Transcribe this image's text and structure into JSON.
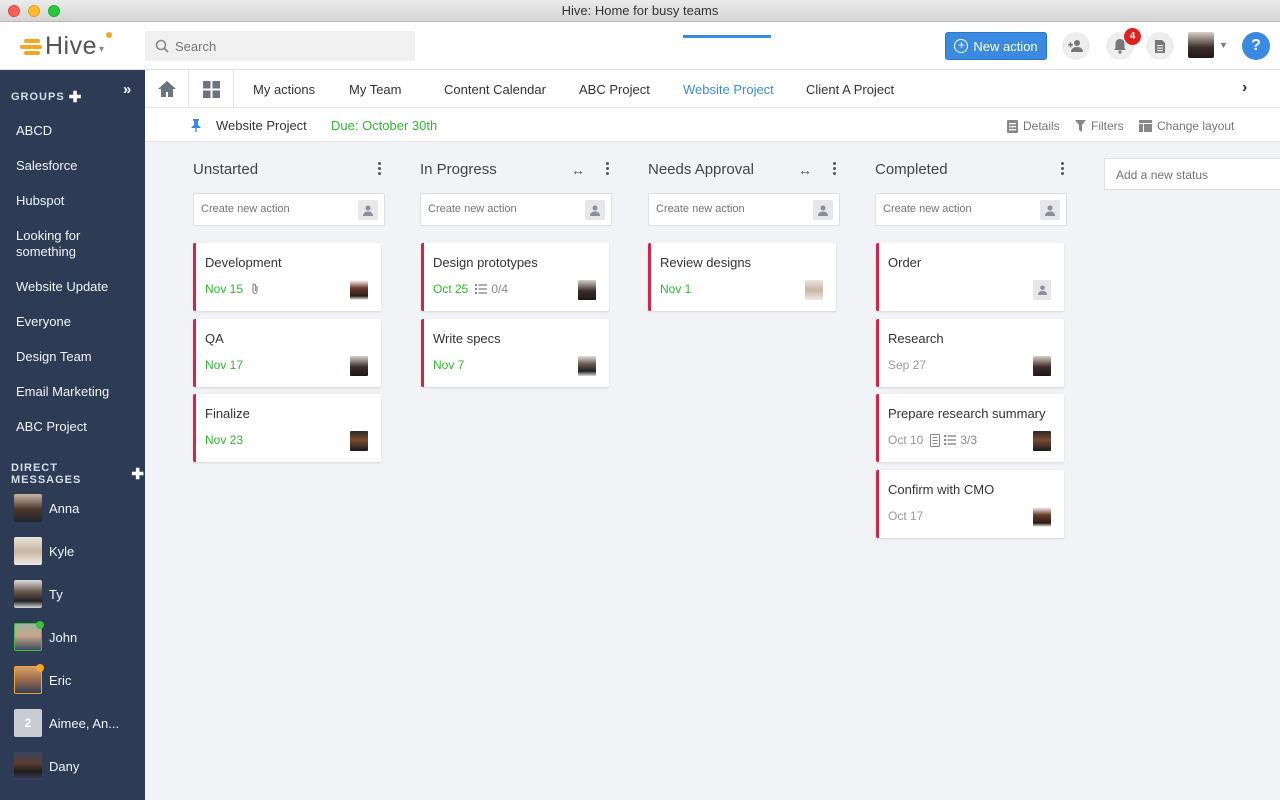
{
  "window": {
    "title": "Hive: Home for busy teams"
  },
  "brand": {
    "name": "Hive",
    "accent": "#3b8ae2",
    "logo_color": "#f5a623"
  },
  "search": {
    "placeholder": "Search"
  },
  "header": {
    "new_action_label": "New action",
    "notification_count": "4",
    "help_label": "?"
  },
  "sidebar": {
    "groups_heading": "GROUPS",
    "groups": [
      "ABCD",
      "Salesforce",
      "Hubspot",
      "Looking for something",
      "Website Update",
      "Everyone",
      "Design Team",
      "Email Marketing",
      "ABC Project"
    ],
    "dm_heading": "DIRECT MESSAGES",
    "dms": [
      {
        "name": "Anna",
        "status": ""
      },
      {
        "name": "Kyle",
        "status": ""
      },
      {
        "name": "Ty",
        "status": ""
      },
      {
        "name": "John",
        "status": "online"
      },
      {
        "name": "Eric",
        "status": "away"
      },
      {
        "name": "Aimee, An...",
        "status": "",
        "group_count": "2"
      },
      {
        "name": "Dany",
        "status": ""
      }
    ]
  },
  "tabs": {
    "items": [
      "My actions",
      "My Team",
      "Content Calendar",
      "ABC Project",
      "Website Project",
      "Client A Project"
    ],
    "active": "Website Project"
  },
  "project": {
    "name": "Website Project",
    "due": "Due: October 30th",
    "actions": {
      "details": "Details",
      "filters": "Filters",
      "change_layout": "Change layout"
    }
  },
  "board": {
    "create_placeholder": "Create new action",
    "add_status_placeholder": "Add a new status",
    "columns": [
      {
        "title": "Unstarted",
        "cards": [
          {
            "title": "Development",
            "date": "Nov 15",
            "date_color": "green",
            "extra_icon": "paperclip-icon",
            "extra_text": ""
          },
          {
            "title": "QA",
            "date": "Nov 17",
            "date_color": "green",
            "extra_icon": "",
            "extra_text": ""
          },
          {
            "title": "Finalize",
            "date": "Nov 23",
            "date_color": "green",
            "extra_icon": "",
            "extra_text": ""
          }
        ]
      },
      {
        "title": "In Progress",
        "cards": [
          {
            "title": "Design prototypes",
            "date": "Oct 25",
            "date_color": "green",
            "extra_icon": "checklist-icon",
            "extra_text": "0/4"
          },
          {
            "title": "Write specs",
            "date": "Nov 7",
            "date_color": "green",
            "extra_icon": "",
            "extra_text": ""
          }
        ]
      },
      {
        "title": "Needs Approval",
        "cards": [
          {
            "title": "Review designs",
            "date": "Nov 1",
            "date_color": "green",
            "extra_icon": "",
            "extra_text": ""
          }
        ]
      },
      {
        "title": "Completed",
        "cards": [
          {
            "title": "Order",
            "date": "",
            "date_color": "gray",
            "extra_icon": "",
            "extra_text": ""
          },
          {
            "title": "Research",
            "date": "Sep 27",
            "date_color": "gray",
            "extra_icon": "",
            "extra_text": ""
          },
          {
            "title": "Prepare research summary",
            "date": "Oct 10",
            "date_color": "gray",
            "extra_icon": "document-checklist-icon",
            "extra_text": "3/3"
          },
          {
            "title": "Confirm with CMO",
            "date": "Oct 17",
            "date_color": "gray",
            "extra_icon": "",
            "extra_text": ""
          }
        ]
      }
    ]
  }
}
